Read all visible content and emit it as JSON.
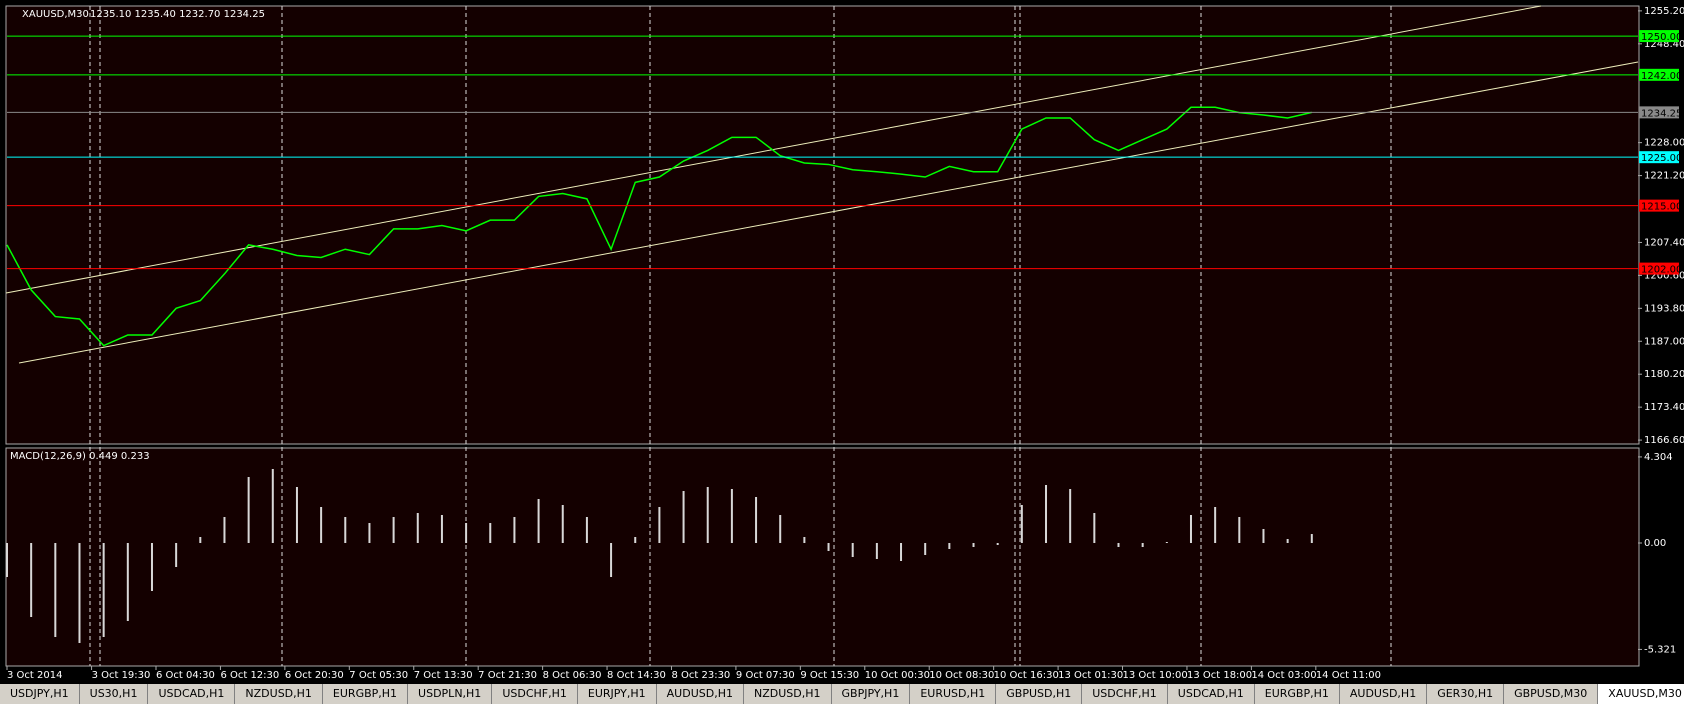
{
  "window": {
    "tabs": [
      "USDJPY,H1",
      "US30,H1",
      "USDCAD,H1",
      "NZDUSD,H1",
      "EURGBP,H1",
      "USDPLN,H1",
      "USDCHF,H1",
      "EURJPY,H1",
      "AUDUSD,H1",
      "NZDUSD,H1",
      "GBPJPY,H1",
      "EURUSD,H1",
      "GBPUSD,H1",
      "USDCHF,H1",
      "USDCAD,H1",
      "EURGBP,H1",
      "AUDUSD,H1",
      "GER30,H1",
      "GBPUSD,M30",
      "XAUUSD,M30"
    ],
    "active_tab": 19
  },
  "chart_data": [
    {
      "type": "line",
      "title": "XAUUSD,M30",
      "subtitle": "1235.10 1235.40 1232.70 1234.25",
      "color": "#00ff00",
      "x": [
        0,
        6,
        12,
        18,
        24,
        30,
        36,
        42,
        48,
        54,
        60,
        66,
        72,
        78,
        84,
        90,
        96,
        102,
        108,
        114,
        120,
        126,
        132,
        138,
        144,
        150,
        156,
        162,
        168,
        174,
        180,
        186,
        192,
        198,
        204,
        210,
        216,
        222,
        228,
        234,
        240,
        246,
        252,
        258,
        264,
        270,
        276,
        282,
        288,
        294,
        300,
        306,
        312,
        318,
        324
      ],
      "values": [
        1206.9,
        1197.6,
        1192.1,
        1191.6,
        1186.1,
        1188.3,
        1188.3,
        1193.8,
        1195.4,
        1200.9,
        1206.9,
        1206.0,
        1204.7,
        1204.3,
        1206.0,
        1204.9,
        1210.2,
        1210.2,
        1210.9,
        1209.8,
        1212.0,
        1212.0,
        1216.9,
        1217.5,
        1216.4,
        1206.0,
        1219.8,
        1220.9,
        1224.2,
        1226.4,
        1229.1,
        1229.1,
        1225.3,
        1223.8,
        1223.5,
        1222.4,
        1222.0,
        1221.5,
        1220.9,
        1223.1,
        1222.0,
        1222.0,
        1230.8,
        1233.1,
        1233.1,
        1228.6,
        1226.4,
        1228.6,
        1230.8,
        1235.3,
        1235.3,
        1234.2,
        1233.7,
        1233.1,
        1234.25
      ],
      "xlim": [
        0,
        405
      ],
      "ylim": [
        1166.0,
        1256.0
      ],
      "yticks": [
        {
          "value": 1255.2,
          "label": "1255.20"
        },
        {
          "value": 1248.4,
          "label": "1248.40"
        },
        {
          "value": 1228,
          "label": "1228.00"
        },
        {
          "value": 1221.2,
          "label": "1221.20"
        },
        {
          "value": 1207.4,
          "label": "1207.40"
        },
        {
          "value": 1200.6,
          "label": "1200.60"
        },
        {
          "value": 1193.8,
          "label": "1193.80"
        },
        {
          "value": 1187,
          "label": "1187.00"
        },
        {
          "value": 1180.2,
          "label": "1180.20"
        },
        {
          "value": 1173.4,
          "label": "1173.40"
        },
        {
          "value": 1166.6,
          "label": "1166.60"
        }
      ],
      "xticks": [
        {
          "value": 0,
          "label": "3 Oct 2014"
        },
        {
          "value": 21,
          "label": "3 Oct 19:30"
        },
        {
          "value": 37,
          "label": "6 Oct 04:30"
        },
        {
          "value": 53,
          "label": "6 Oct 12:30"
        },
        {
          "value": 69,
          "label": "6 Oct 20:30"
        },
        {
          "value": 85,
          "label": "7 Oct 05:30"
        },
        {
          "value": 101,
          "label": "7 Oct 13:30"
        },
        {
          "value": 117,
          "label": "7 Oct 21:30"
        },
        {
          "value": 133,
          "label": "8 Oct 06:30"
        },
        {
          "value": 149,
          "label": "8 Oct 14:30"
        },
        {
          "value": 165,
          "label": "8 Oct 23:30"
        },
        {
          "value": 181,
          "label": "9 Oct 07:30"
        },
        {
          "value": 197,
          "label": "9 Oct 15:30"
        },
        {
          "value": 213,
          "label": "10 Oct 00:30"
        },
        {
          "value": 229,
          "label": "10 Oct 08:30"
        },
        {
          "value": 245,
          "label": "10 Oct 16:30"
        },
        {
          "value": 261,
          "label": "13 Oct 01:30"
        },
        {
          "value": 277,
          "label": "13 Oct 10:00"
        },
        {
          "value": 293,
          "label": "13 Oct 18:00"
        },
        {
          "value": 309,
          "label": "14 Oct 03:00"
        },
        {
          "value": 325,
          "label": "14 Oct 11:00"
        }
      ],
      "levels": [
        {
          "value": 1250,
          "label": "1250.00",
          "color": "#00ff00"
        },
        {
          "value": 1242,
          "label": "1242.00",
          "color": "#00ff00"
        },
        {
          "value": 1234.25,
          "label": "1234.25",
          "color": "#8a8a8a"
        },
        {
          "value": 1225,
          "label": "1225.00",
          "color": "#00ffff"
        },
        {
          "value": 1215,
          "label": "1215.00",
          "color": "#ff0000"
        },
        {
          "value": 1202,
          "label": "1202.00",
          "color": "#ff0000"
        }
      ]
    },
    {
      "type": "bar",
      "title": "MACD(12,26,9) 0.449 0.233",
      "color": "#d8d8d8",
      "x": [
        0,
        6,
        12,
        18,
        24,
        30,
        36,
        42,
        48,
        54,
        60,
        66,
        72,
        78,
        84,
        90,
        96,
        102,
        108,
        114,
        120,
        126,
        132,
        138,
        144,
        150,
        156,
        162,
        168,
        174,
        180,
        186,
        192,
        198,
        204,
        210,
        216,
        222,
        228,
        234,
        240,
        246,
        252,
        258,
        264,
        270,
        276,
        282,
        288,
        294,
        300,
        306,
        312,
        318,
        324
      ],
      "values": [
        -1.7,
        -3.7,
        -4.7,
        -5.0,
        -4.7,
        -3.9,
        -2.4,
        -1.2,
        0.3,
        1.3,
        3.3,
        3.7,
        2.8,
        1.8,
        1.3,
        1.0,
        1.3,
        1.5,
        1.4,
        1.0,
        1.0,
        1.3,
        2.2,
        1.9,
        1.3,
        -1.7,
        0.3,
        1.8,
        2.6,
        2.8,
        2.7,
        2.3,
        1.4,
        0.3,
        -0.4,
        -0.7,
        -0.8,
        -0.9,
        -0.6,
        -0.3,
        -0.2,
        -0.1,
        1.9,
        2.9,
        2.7,
        1.5,
        -0.2,
        -0.2,
        0.05,
        1.4,
        1.8,
        1.3,
        0.7,
        0.2,
        0.449
      ],
      "xlim": [
        0,
        405
      ],
      "ylim": [
        -6.15,
        4.65
      ],
      "yticks": [
        4.304,
        {
          "value": 0,
          "label": "0.00"
        },
        -5.321
      ]
    }
  ]
}
